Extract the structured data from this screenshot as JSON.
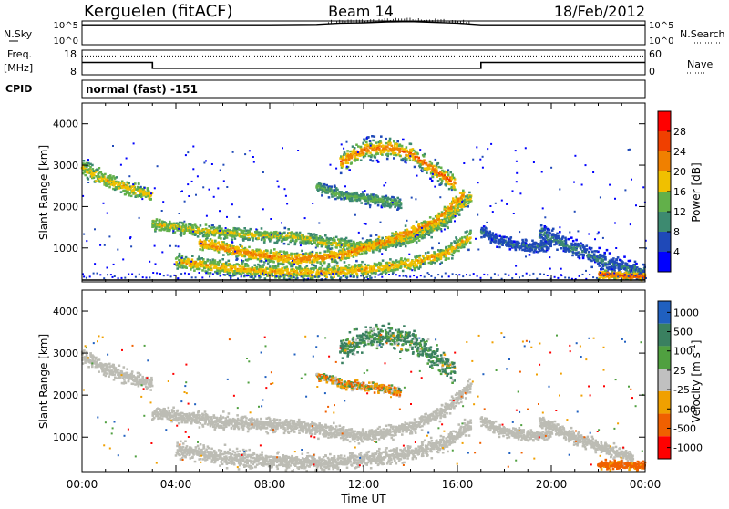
{
  "header": {
    "station": "Kerguelen (fitACF)",
    "beam": "Beam 14",
    "date": "18/Feb/2012"
  },
  "strip_labels": {
    "nsky": "N.Sky",
    "nsearch": "N.Search",
    "freq_line1": "Freq.",
    "freq_line2": "[MHz]",
    "nave": "Nave",
    "cpid": "CPID",
    "cpid_text": "normal (fast) -151"
  },
  "colors": {
    "power": [
      "#0000ff",
      "#1f49b8",
      "#3d8a70",
      "#62b04a",
      "#f0c000",
      "#f08000",
      "#f04000",
      "#ff0000"
    ],
    "velocity": [
      "#2060c0",
      "#3a8060",
      "#50a040",
      "#c0c0c0",
      "#f0a000",
      "#f06000",
      "#ff0000"
    ],
    "ground_scatter": "#bcbcb4"
  },
  "chart_data": [
    {
      "type": "line",
      "name": "N.Sky / N.Search",
      "x_unit": "hours UT",
      "ylabel_left": "N.Sky",
      "ylabel_right": "N.Search",
      "left_ticks": [
        "10^5",
        "10^0"
      ],
      "right_ticks": [
        "10^5",
        "10^0"
      ],
      "y_log_range": [
        0,
        5
      ],
      "series": [
        {
          "x": [
            0,
            2,
            4,
            6,
            8,
            10,
            11,
            12,
            13,
            14,
            15,
            16,
            16.5,
            17,
            18,
            20,
            22,
            24
          ],
          "y": [
            4.5,
            4.5,
            4.5,
            4.5,
            4.5,
            4.6,
            4.9,
            5.0,
            5.2,
            5.3,
            5.1,
            4.9,
            4.7,
            4.5,
            4.5,
            4.5,
            4.5,
            4.5
          ]
        }
      ]
    },
    {
      "type": "line",
      "name": "Frequency / Nave",
      "ylabel_left": "Freq. [MHz]",
      "ylabel_right": "Nave",
      "left_ticks": [
        8,
        18
      ],
      "right_ticks": [
        0,
        60
      ],
      "freq_range": [
        8,
        18
      ],
      "nave_range": [
        0,
        60
      ],
      "frequency": {
        "x": [
          0,
          3,
          3,
          17,
          17,
          24
        ],
        "y": [
          13,
          13,
          10.5,
          10.5,
          13,
          13
        ]
      },
      "nave": {
        "x": [
          0,
          24
        ],
        "y": [
          47,
          47
        ]
      }
    },
    {
      "type": "heatmap",
      "name": "Power",
      "xlabel": "",
      "ylabel": "Slant Range [km]",
      "xlim": [
        0,
        24
      ],
      "ylim": [
        180,
        4500
      ],
      "y_ticks": [
        1000,
        2000,
        3000,
        4000
      ],
      "colorbar_label": "Power [dB]",
      "colorbar_ticks": [
        4,
        8,
        12,
        16,
        20,
        24,
        28
      ],
      "colorbar_range": [
        0,
        32
      ],
      "bands": [
        {
          "x": [
            0,
            1,
            2,
            3
          ],
          "y": [
            2950,
            2650,
            2450,
            2300
          ],
          "width": 250,
          "level": 18,
          "extent": 420
        },
        {
          "x": [
            3,
            5,
            7,
            9,
            10.5,
            12,
            14,
            15.5,
            16.5
          ],
          "y": [
            1600,
            1450,
            1350,
            1300,
            1150,
            1050,
            1250,
            1700,
            2250
          ],
          "width": 220,
          "level": 17,
          "extent": 320
        },
        {
          "x": [
            5,
            7,
            9,
            11,
            13,
            15,
            16.2
          ],
          "y": [
            1150,
            900,
            750,
            850,
            1200,
            1650,
            2300
          ],
          "width": 240,
          "level": 22,
          "extent": 320
        },
        {
          "x": [
            4,
            6,
            8,
            10,
            12,
            14,
            15.5,
            16.5
          ],
          "y": [
            700,
            550,
            450,
            420,
            500,
            650,
            900,
            1300
          ],
          "width": 260,
          "level": 20,
          "extent": 300
        },
        {
          "x": [
            11,
            12,
            13,
            14,
            15,
            15.8
          ],
          "y": [
            3100,
            3400,
            3450,
            3300,
            2900,
            2600
          ],
          "width": 400,
          "level": 24,
          "extent": 300
        },
        {
          "x": [
            10,
            11,
            12.5,
            13.5
          ],
          "y": [
            2500,
            2300,
            2200,
            2100
          ],
          "width": 200,
          "level": 14,
          "extent": 220
        },
        {
          "x": [
            17,
            18,
            19,
            20
          ],
          "y": [
            1400,
            1150,
            1050,
            1100
          ],
          "width": 220,
          "level": 8,
          "extent": 260
        },
        {
          "x": [
            19.5,
            21,
            22.5,
            24
          ],
          "y": [
            1400,
            1000,
            650,
            420
          ],
          "width": 320,
          "level": 9,
          "extent": 330
        },
        {
          "x": [
            22,
            23,
            24
          ],
          "y": [
            380,
            360,
            330
          ],
          "width": 140,
          "level": 26,
          "extent": 180
        }
      ]
    },
    {
      "type": "heatmap",
      "name": "Velocity",
      "xlabel": "Time UT",
      "ylabel": "Slant Range [km]",
      "xlim": [
        0,
        24
      ],
      "ylim": [
        180,
        4500
      ],
      "x_ticks": [
        "00:00",
        "04:00",
        "08:00",
        "12:00",
        "16:00",
        "20:00",
        "00:00"
      ],
      "y_ticks": [
        1000,
        2000,
        3000,
        4000
      ],
      "colorbar_label": "Velocity [m s-1]",
      "colorbar_label_main": "Velocity  [m s",
      "colorbar_label_sup": "-1",
      "colorbar_label_end": "]",
      "colorbar_ticks": [
        "1000",
        "500",
        "100",
        "25",
        "-25",
        "-100",
        "-500",
        "-1000"
      ],
      "gray_bands": [
        {
          "x": [
            0,
            1,
            2,
            3
          ],
          "y": [
            2950,
            2650,
            2450,
            2300
          ],
          "width": 250,
          "extent": 420
        },
        {
          "x": [
            3,
            5,
            7,
            9,
            10.5,
            12,
            14,
            15.5,
            16.5
          ],
          "y": [
            1600,
            1450,
            1350,
            1300,
            1150,
            1050,
            1250,
            1700,
            2250
          ],
          "width": 240,
          "extent": 320
        },
        {
          "x": [
            4,
            6,
            8,
            10,
            12,
            14,
            15.5,
            16.5
          ],
          "y": [
            700,
            550,
            450,
            420,
            500,
            650,
            900,
            1300
          ],
          "width": 280,
          "extent": 300
        },
        {
          "x": [
            17,
            18,
            19,
            20
          ],
          "y": [
            1400,
            1150,
            1050,
            1100
          ],
          "width": 200,
          "extent": 260
        },
        {
          "x": [
            19.5,
            21,
            22.5,
            23.5
          ],
          "y": [
            1400,
            1000,
            700,
            500
          ],
          "width": 220,
          "extent": 300
        }
      ],
      "ionospheric_bands": [
        {
          "x": [
            11,
            12,
            13,
            14,
            15,
            15.8
          ],
          "y": [
            3100,
            3400,
            3450,
            3300,
            2900,
            2600
          ],
          "width": 400,
          "velocity": 120,
          "extent": 300
        },
        {
          "x": [
            22,
            23,
            24
          ],
          "y": [
            380,
            360,
            330
          ],
          "width": 160,
          "velocity": -200,
          "extent": 180
        },
        {
          "x": [
            10,
            11,
            12.5,
            13.5
          ],
          "y": [
            2500,
            2300,
            2200,
            2100
          ],
          "width": 160,
          "velocity": -40,
          "extent": 200
        }
      ]
    }
  ]
}
